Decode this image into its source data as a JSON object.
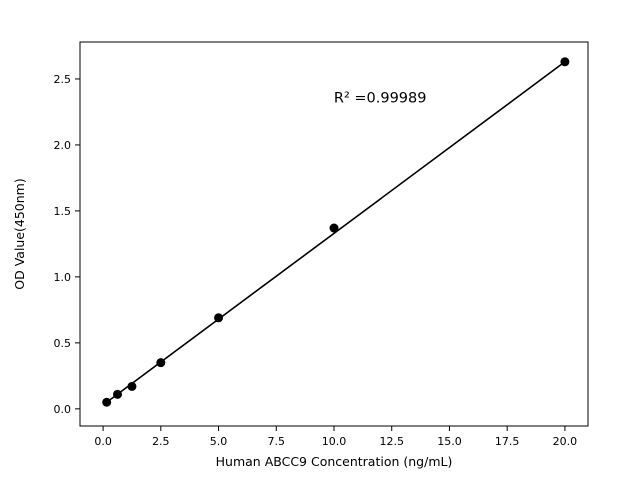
{
  "figure": {
    "background": "#ffffff"
  },
  "chart_data": {
    "type": "scatter",
    "title": "",
    "xlabel": "Human ABCC9 Concentration (ng/mL)",
    "ylabel": "OD Value(450nm)",
    "annotation": {
      "text": "R² =0.99989",
      "x": 12.0,
      "y": 2.32
    },
    "xlim": [
      -1.0,
      21.0
    ],
    "ylim": [
      -0.13,
      2.78
    ],
    "xticks": [
      0.0,
      2.5,
      5.0,
      7.5,
      10.0,
      12.5,
      15.0,
      17.5,
      20.0
    ],
    "xtick_labels": [
      "0.0",
      "2.5",
      "5.0",
      "7.5",
      "10.0",
      "12.5",
      "15.0",
      "17.5",
      "20.0"
    ],
    "yticks": [
      0.0,
      0.5,
      1.0,
      1.5,
      2.0,
      2.5
    ],
    "ytick_labels": [
      "0.0",
      "0.5",
      "1.0",
      "1.5",
      "2.0",
      "2.5"
    ],
    "points": [
      [
        0.156,
        0.05
      ],
      [
        0.625,
        0.11
      ],
      [
        1.25,
        0.17
      ],
      [
        2.5,
        0.35
      ],
      [
        5.0,
        0.69
      ],
      [
        10.0,
        1.37
      ],
      [
        20.0,
        2.63
      ]
    ],
    "fit_line": {
      "x1": 0.156,
      "y1": 0.05,
      "x2": 20.0,
      "y2": 2.63
    },
    "marker_color": "#000000",
    "line_color": "#000000",
    "axis_color": "#000000",
    "grid": false,
    "legend": null
  }
}
